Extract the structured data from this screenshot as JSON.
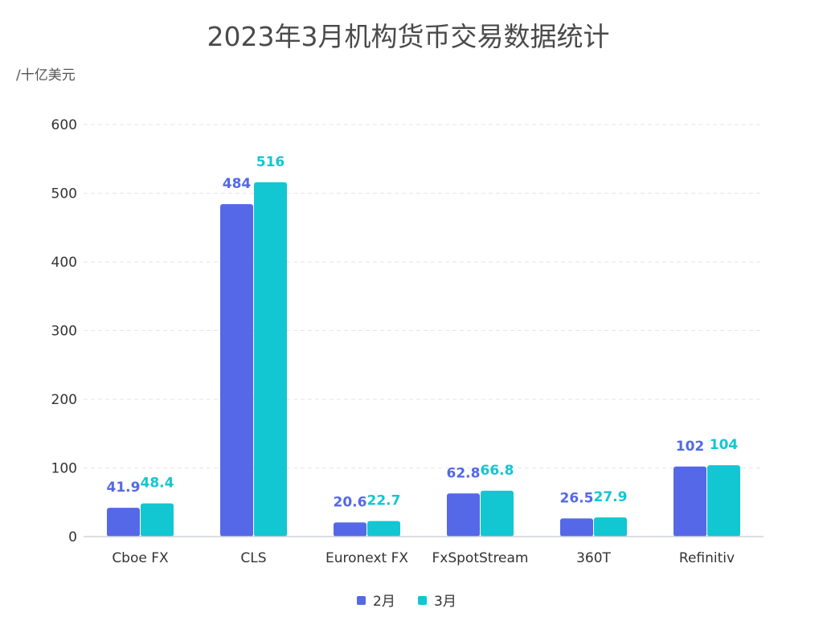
{
  "chart_data": {
    "type": "bar",
    "title": "2023年3月机构货币交易数据统计",
    "unit_label": "/十亿美元",
    "xlabel": "",
    "ylabel": "",
    "ylim": [
      0,
      600
    ],
    "yticks": [
      0,
      100,
      200,
      300,
      400,
      500,
      600
    ],
    "grid": true,
    "legend_position": "bottom-center",
    "categories": [
      "Cboe FX",
      "CLS",
      "Euronext FX",
      "FxSpotStream",
      "360T",
      "Refinitiv"
    ],
    "series": [
      {
        "name": "2月",
        "color": "#5468e8",
        "values": [
          41.9,
          484,
          20.6,
          62.8,
          26.5,
          102
        ]
      },
      {
        "name": "3月",
        "color": "#12c6d2",
        "values": [
          48.4,
          516,
          22.7,
          66.8,
          27.9,
          104
        ]
      }
    ]
  }
}
